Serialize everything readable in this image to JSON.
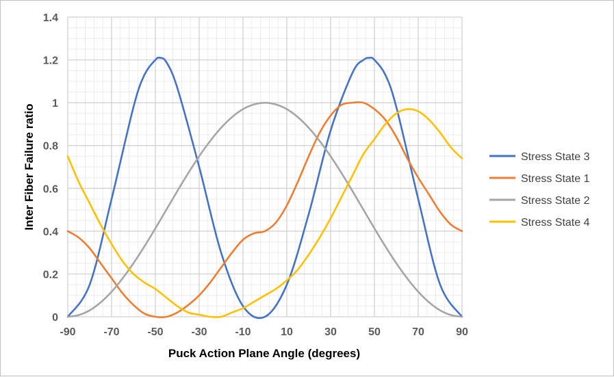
{
  "chart_data": {
    "type": "line",
    "xlabel": "Puck Action Plane Angle (degrees)",
    "ylabel": "Inter Fiber Failure  ratio",
    "xlim": [
      -90,
      90
    ],
    "ylim": [
      0,
      1.4
    ],
    "xticks": [
      -90,
      -70,
      -50,
      -30,
      -10,
      10,
      30,
      50,
      70,
      90
    ],
    "xtick_labels": [
      "-90",
      "-70",
      "-50",
      "-30",
      "-10",
      "10",
      "30",
      "50",
      "70",
      "90"
    ],
    "yticks": [
      0,
      0.2,
      0.4,
      0.6,
      0.8,
      1,
      1.2,
      1.4
    ],
    "ytick_labels": [
      "0",
      "0.2",
      "0.4",
      "0.6",
      "0.8",
      "1",
      "1.2",
      "1.4"
    ],
    "grid": true,
    "minor_grid": true,
    "legend_position": "right",
    "series": [
      {
        "name": "Stress State 3",
        "color": "#4472C4",
        "x": [
          -90,
          -80,
          -70,
          -60,
          -55,
          -50,
          -48,
          -45,
          -40,
          -30,
          -20,
          -10,
          0,
          10,
          20,
          30,
          40,
          45,
          48,
          50,
          55,
          60,
          70,
          80,
          90
        ],
        "y": [
          0,
          0.15,
          0.55,
          0.98,
          1.13,
          1.2,
          1.21,
          1.19,
          1.07,
          0.7,
          0.3,
          0.05,
          0,
          0.15,
          0.48,
          0.87,
          1.14,
          1.2,
          1.21,
          1.2,
          1.13,
          0.98,
          0.55,
          0.15,
          0
        ]
      },
      {
        "name": "Stress State 1",
        "color": "#ED7D31",
        "x": [
          -90,
          -85,
          -80,
          -75,
          -70,
          -65,
          -60,
          -55,
          -50,
          -45,
          -40,
          -35,
          -30,
          -25,
          -20,
          -15,
          -10,
          -5,
          0,
          5,
          10,
          15,
          20,
          25,
          30,
          35,
          40,
          45,
          50,
          55,
          60,
          65,
          70,
          75,
          80,
          85,
          90
        ],
        "y": [
          0.4,
          0.37,
          0.32,
          0.25,
          0.18,
          0.11,
          0.055,
          0.015,
          0.0,
          0.0,
          0.02,
          0.055,
          0.1,
          0.16,
          0.23,
          0.3,
          0.36,
          0.39,
          0.4,
          0.44,
          0.52,
          0.63,
          0.75,
          0.86,
          0.94,
          0.99,
          1.0,
          1.0,
          0.97,
          0.92,
          0.84,
          0.74,
          0.65,
          0.57,
          0.49,
          0.43,
          0.4
        ]
      },
      {
        "name": "Stress State 2",
        "color": "#A5A5A5",
        "x": [
          -90,
          -85,
          -80,
          -75,
          -70,
          -65,
          -60,
          -55,
          -50,
          -45,
          -40,
          -35,
          -30,
          -25,
          -20,
          -15,
          -10,
          -5,
          0,
          5,
          10,
          15,
          20,
          25,
          30,
          35,
          40,
          45,
          50,
          55,
          60,
          65,
          70,
          75,
          80,
          85,
          90
        ],
        "y": [
          0,
          0.008,
          0.03,
          0.067,
          0.117,
          0.179,
          0.25,
          0.329,
          0.413,
          0.5,
          0.587,
          0.671,
          0.75,
          0.821,
          0.883,
          0.933,
          0.97,
          0.992,
          1.0,
          0.992,
          0.97,
          0.933,
          0.883,
          0.821,
          0.75,
          0.671,
          0.587,
          0.5,
          0.413,
          0.329,
          0.25,
          0.179,
          0.117,
          0.067,
          0.03,
          0.008,
          0
        ]
      },
      {
        "name": "Stress State 4",
        "color": "#FFC000",
        "x": [
          -90,
          -85,
          -80,
          -75,
          -70,
          -65,
          -60,
          -55,
          -50,
          -45,
          -40,
          -35,
          -30,
          -25,
          -20,
          -15,
          -10,
          -5,
          0,
          5,
          10,
          15,
          20,
          25,
          30,
          35,
          40,
          45,
          50,
          55,
          60,
          65,
          70,
          75,
          80,
          85,
          90
        ],
        "y": [
          0.75,
          0.63,
          0.53,
          0.43,
          0.34,
          0.26,
          0.2,
          0.16,
          0.13,
          0.09,
          0.05,
          0.02,
          0.01,
          0.0,
          0.0,
          0.02,
          0.04,
          0.07,
          0.1,
          0.13,
          0.17,
          0.22,
          0.29,
          0.37,
          0.46,
          0.56,
          0.66,
          0.76,
          0.83,
          0.9,
          0.95,
          0.97,
          0.96,
          0.92,
          0.86,
          0.79,
          0.74
        ]
      }
    ]
  }
}
